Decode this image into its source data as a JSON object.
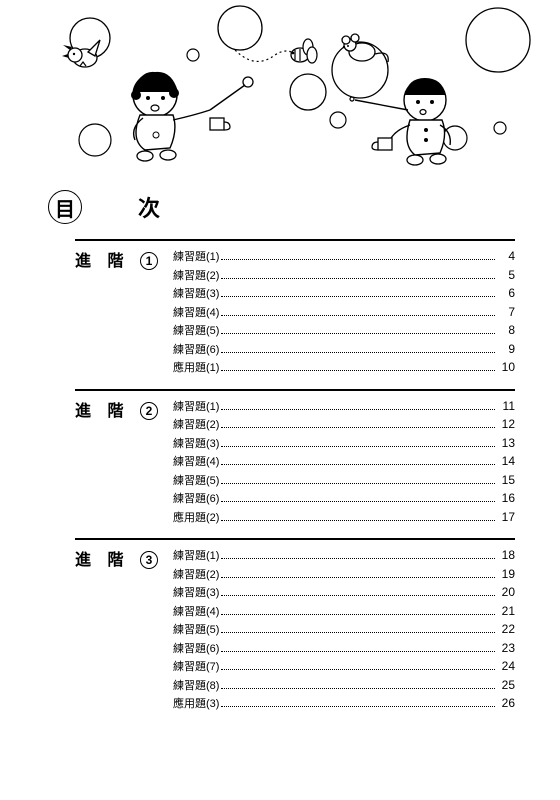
{
  "title": {
    "char1": "目",
    "char2": "次"
  },
  "sections": [
    {
      "label_prefix": "進 階",
      "number": "1",
      "entries": [
        {
          "label": "練習題(1)",
          "page": "4"
        },
        {
          "label": "練習題(2)",
          "page": "5"
        },
        {
          "label": "練習題(3)",
          "page": "6"
        },
        {
          "label": "練習題(4)",
          "page": "7"
        },
        {
          "label": "練習題(5)",
          "page": "8"
        },
        {
          "label": "練習題(6)",
          "page": "9"
        },
        {
          "label": "應用題(1)",
          "page": "10"
        }
      ]
    },
    {
      "label_prefix": "進 階",
      "number": "2",
      "entries": [
        {
          "label": "練習題(1)",
          "page": "11"
        },
        {
          "label": "練習題(2)",
          "page": "12"
        },
        {
          "label": "練習題(3)",
          "page": "13"
        },
        {
          "label": "練習題(4)",
          "page": "14"
        },
        {
          "label": "練習題(5)",
          "page": "15"
        },
        {
          "label": "練習題(6)",
          "page": "16"
        },
        {
          "label": "應用題(2)",
          "page": "17"
        }
      ]
    },
    {
      "label_prefix": "進 階",
      "number": "3",
      "entries": [
        {
          "label": "練習題(1)",
          "page": "18"
        },
        {
          "label": "練習題(2)",
          "page": "19"
        },
        {
          "label": "練習題(3)",
          "page": "20"
        },
        {
          "label": "練習題(4)",
          "page": "21"
        },
        {
          "label": "練習題(5)",
          "page": "22"
        },
        {
          "label": "練習題(6)",
          "page": "23"
        },
        {
          "label": "練習題(7)",
          "page": "24"
        },
        {
          "label": "練習題(8)",
          "page": "25"
        },
        {
          "label": "應用題(3)",
          "page": "26"
        }
      ]
    }
  ]
}
